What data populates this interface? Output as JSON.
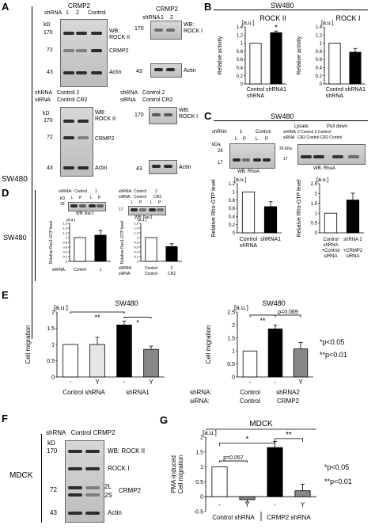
{
  "panels": {
    "A": "A",
    "B": "B",
    "C": "C",
    "D": "D",
    "E": "E",
    "F": "F",
    "G": "G"
  },
  "cell_lines": {
    "sw480_a": "SW480",
    "sw480_d": "SW480",
    "mdck_f": "MDCK"
  },
  "panelA": {
    "crmp2_header": "CRMP2",
    "shrna_label": "shRNA",
    "lanes_left": [
      "1",
      "2",
      "Control"
    ],
    "lanes_right": [
      "1",
      "2"
    ],
    "kd": "kD",
    "mw_top_left": [
      "170",
      "72",
      "43"
    ],
    "wb_rock2": "WB:\nROCK II",
    "crmp2": "CRMP2",
    "actin": "Actin",
    "mw_top_right": [
      "170",
      "43"
    ],
    "wb_rock1": "WB:\nROCK I",
    "lower_shrna": "shRNA",
    "lower_sirna": "siRNA",
    "lower_left_shrna_vals": "Control  2",
    "lower_left_sirna_vals": "Control CR2",
    "lower_right_shrna_vals": "Control  2",
    "lower_right_sirna_vals": "Control CR2",
    "mw_bottom_left": [
      "170",
      "72",
      "43"
    ],
    "mw_bottom_right": [
      "170",
      "43"
    ],
    "wb_rock2_b": "WB:\nROCK II",
    "crmp2_b": "CRMP2",
    "actin_b": "Actin",
    "wb_rock1_b": "WB:\nROCK I",
    "actin_b2": "Actin"
  },
  "panelB": {
    "title": "SW480",
    "left_title": "ROCK II",
    "right_title": "ROCK I",
    "unit": "[a.u.]",
    "ylabel": "Relative activity",
    "star": "*"
  },
  "panelC": {
    "title": "SW480",
    "shrna": "shRNA",
    "one": "1",
    "control": "Control",
    "kda": "kDa",
    "lanes": [
      "L",
      "P",
      "L",
      "P"
    ],
    "mw": [
      "26",
      "17"
    ],
    "wb": "WB: RhoA",
    "lysate": "Lysate",
    "pulldown": "Pull down",
    "shrna2": "shRNA",
    "sirna2": "siRNA",
    "r_shrna_vals": "2  Control  2  Control",
    "r_sirna_vals": "CR2 Control CR2 Control",
    "mw_right": [
      "26 kDa",
      "17"
    ],
    "wb_right": "WB: RhoA",
    "unit": "[a.u.]",
    "ylabel": "Relative Rho-GTP level"
  },
  "panelD": {
    "shrna": "shRNA:",
    "control": "Control",
    "one": "1",
    "kd": "kD",
    "mw": [
      "26"
    ],
    "wb": "WB: Rac1",
    "shrna2": "shRNA:",
    "sirna2": "siRNA:",
    "control2": "Control",
    "two": "2",
    "control3": "Control",
    "cr2": "CR2",
    "lanes": [
      "L",
      "P",
      "L",
      "P"
    ],
    "mw2": [
      "17"
    ],
    "wb2": "WB: Rac1",
    "unit": "[a.u.]",
    "ylabel": "Relative Rac1-GTP level"
  },
  "panelE": {
    "title_left": "SW480",
    "title_right": "SW480",
    "unit": "[a.u.]",
    "ylabel": "Cell migration",
    "sig_left_a": "**",
    "sig_left_b": "*",
    "sig_right_a": "**",
    "sig_right_b": "p=0.069",
    "legend1": "*p<0.05",
    "legend2": "**p<0.01",
    "shrna": "shRNA:",
    "sirna": "siRNA:"
  },
  "panelF": {
    "header": "shRNA   Control CRMP2",
    "kd": "kD",
    "mw": [
      "170",
      "72",
      "43"
    ],
    "labels": [
      "WB: ROCK II",
      "ROCK I",
      "CRMP2",
      "Actin"
    ],
    "bands": [
      "2L",
      "2S"
    ]
  },
  "panelG": {
    "title": "MDCK",
    "unit": "[a.u.]",
    "ylabel": "PMA-induced\nCell migration",
    "sig1": "*",
    "sig2": "**",
    "p1": "p=0.057",
    "legend1": "*p<0.05",
    "legend2": "**p<0.01",
    "group1": "Control shRNA",
    "group2": "CRMP2 shRNA"
  },
  "chart_data": [
    {
      "type": "bar",
      "panel": "B-left",
      "categories": [
        "Control shRNA",
        "shRNA1"
      ],
      "values": [
        1.0,
        1.26
      ],
      "errors": [
        0,
        0.04
      ],
      "ylim": [
        0,
        1.4
      ],
      "yticks": [
        0,
        0.2,
        0.4,
        0.6,
        0.8,
        1,
        1.2,
        1.4
      ],
      "title": "ROCK II",
      "ylabel": "Relative activity"
    },
    {
      "type": "bar",
      "panel": "B-right",
      "categories": [
        "Control shRNA",
        "shRNA1"
      ],
      "values": [
        1.0,
        0.78
      ],
      "errors": [
        0,
        0.09
      ],
      "ylim": [
        0,
        1.4
      ],
      "yticks": [
        0,
        0.2,
        0.4,
        0.6,
        0.8,
        1,
        1.2,
        1.4
      ],
      "title": "ROCK I",
      "ylabel": "Relative activity"
    },
    {
      "type": "bar",
      "panel": "C-left",
      "categories": [
        "Control shRNA",
        "shRNA1"
      ],
      "values": [
        1.0,
        0.64
      ],
      "errors": [
        0,
        0.12
      ],
      "ylim": [
        0,
        1.2
      ],
      "yticks": [
        0,
        0.2,
        0.4,
        0.6,
        0.8,
        1,
        1.2
      ],
      "ylabel": "Relative Rho-GTP level"
    },
    {
      "type": "bar",
      "panel": "C-right",
      "categories": [
        "Control shRNA +Control siRNA",
        "shRNA 2 +CRMP2 siRNA"
      ],
      "values": [
        1.0,
        1.67
      ],
      "errors": [
        0,
        0.35
      ],
      "ylim": [
        0,
        2.5
      ],
      "yticks": [
        0,
        0.5,
        1,
        1.5,
        2,
        2.5
      ],
      "ylabel": "Relative Rho-GTP level"
    },
    {
      "type": "bar",
      "panel": "D-left",
      "categories": [
        "Control",
        "1"
      ],
      "values": [
        1.0,
        1.1
      ],
      "errors": [
        0,
        0.2
      ],
      "ylim": [
        0,
        1.6
      ],
      "yticks": [
        0,
        0.2,
        0.4,
        0.6,
        0.8,
        1,
        1.2,
        1.4,
        1.6
      ],
      "ylabel": "Relative Rac1-GTP level"
    },
    {
      "type": "bar",
      "panel": "D-right",
      "categories": [
        "Control",
        "2 CR2"
      ],
      "values": [
        1.0,
        0.62
      ],
      "errors": [
        0,
        0.12
      ],
      "ylim": [
        0,
        1.6
      ],
      "yticks": [
        0,
        0.2,
        0.4,
        0.6,
        0.8,
        1,
        1.2,
        1.4,
        1.6
      ],
      "ylabel": "Relative Rac1-GTP level"
    },
    {
      "type": "bar",
      "panel": "E-left",
      "categories": [
        "-",
        "Y",
        "-",
        "Y"
      ],
      "groups": [
        "Control shRNA",
        "shRNA1"
      ],
      "values": [
        1.0,
        1.0,
        1.6,
        0.85
      ],
      "errors": [
        0,
        0.22,
        0.12,
        0.1
      ],
      "ylim": [
        0,
        2
      ],
      "yticks": [
        0,
        0.5,
        1,
        1.5,
        2
      ],
      "ylabel": "Cell migration"
    },
    {
      "type": "bar",
      "panel": "E-right",
      "categories": [
        "-",
        "-",
        "Y"
      ],
      "groups": [
        "Control Control",
        "shRNA2 CRMP2"
      ],
      "values": [
        1.0,
        1.85,
        1.08
      ],
      "errors": [
        0,
        0.15,
        0.25
      ],
      "ylim": [
        0,
        2.5
      ],
      "yticks": [
        0,
        0.5,
        1,
        1.5,
        2,
        2.5
      ],
      "ylabel": "Cell migration"
    },
    {
      "type": "bar",
      "panel": "G",
      "categories": [
        "-",
        "Y",
        "-",
        "Y"
      ],
      "groups": [
        "Control shRNA",
        "CRMP2 shRNA"
      ],
      "values": [
        1.0,
        -0.1,
        1.65,
        0.2
      ],
      "errors": [
        0,
        0.08,
        0.2,
        0.22
      ],
      "ylim": [
        -0.5,
        2
      ],
      "yticks": [
        -0.5,
        0,
        0.5,
        1,
        1.5,
        2
      ],
      "ylabel": "PMA-induced Cell migration"
    }
  ]
}
